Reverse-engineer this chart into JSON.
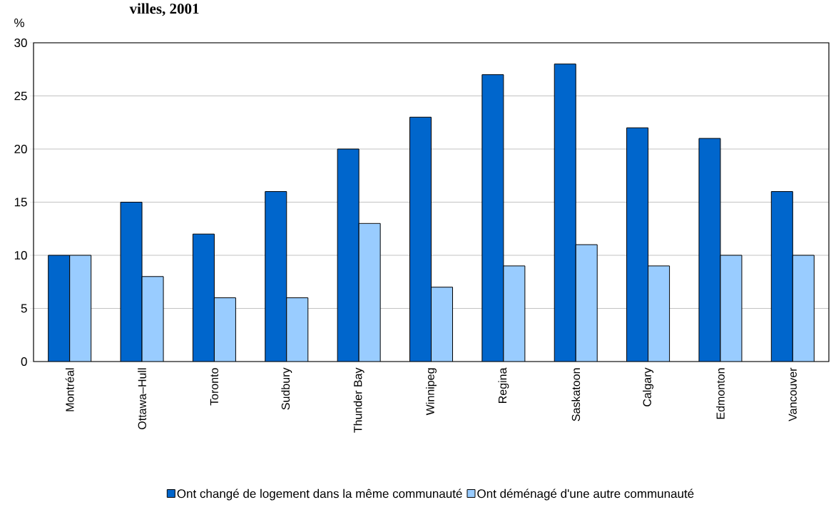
{
  "chart_data": {
    "type": "bar",
    "title": "villes, 2001",
    "ylabel": "%",
    "categories": [
      "Montréal",
      "Ottawa–Hull",
      "Toronto",
      "Sudbury",
      "Thunder Bay",
      "Winnipeg",
      "Regina",
      "Saskatoon",
      "Calgary",
      "Edmonton",
      "Vancouver"
    ],
    "series": [
      {
        "name": "Ont changé de logement dans la même communauté",
        "color": "#0066cc",
        "values": [
          10,
          15,
          12,
          16,
          20,
          23,
          27,
          28,
          22,
          21,
          16
        ]
      },
      {
        "name": "Ont déménagé d'une autre communauté",
        "color": "#99ccff",
        "values": [
          10,
          8,
          6,
          6,
          13,
          7,
          9,
          11,
          9,
          10,
          10
        ]
      }
    ],
    "ylim": [
      0,
      30
    ],
    "yticks": [
      0,
      5,
      10,
      15,
      20,
      25,
      30
    ],
    "grid": "y",
    "legend": "bottom"
  }
}
